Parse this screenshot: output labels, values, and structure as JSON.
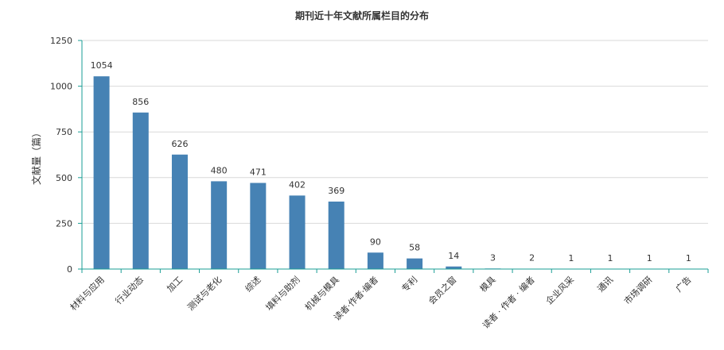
{
  "chart_data": {
    "type": "bar",
    "title": "期刊近十年文献所属栏目的分布",
    "xlabel": "",
    "ylabel": "文献量（篇）",
    "ylim": [
      0,
      1250
    ],
    "yticks": [
      0,
      250,
      500,
      750,
      1000,
      1250
    ],
    "grid": true,
    "legend": "none",
    "bar_color": "#4682b4",
    "categories": [
      "材料与应用",
      "行业动态",
      "加工",
      "测试与老化",
      "综述",
      "填料与助剂",
      "机械与模具",
      "读者·作者·编者",
      "专利",
      "会员之窗",
      "模具",
      "读者 · 作者 · 编者",
      "企业风采",
      "通讯",
      "市场调研",
      "广告"
    ],
    "values": [
      1054,
      856,
      626,
      480,
      471,
      402,
      369,
      90,
      58,
      14,
      3,
      2,
      1,
      1,
      1,
      1
    ]
  }
}
